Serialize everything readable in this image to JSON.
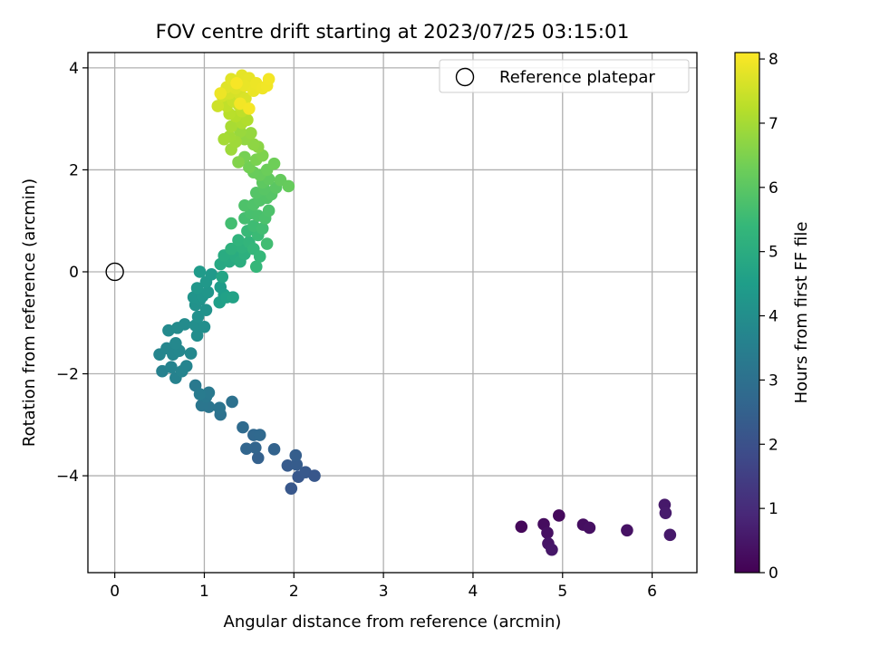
{
  "chart_data": {
    "type": "scatter",
    "title": "FOV centre drift starting at 2023/07/25 03:15:01",
    "xlabel": "Angular distance from reference (arcmin)",
    "ylabel": "Rotation from reference (arcmin)",
    "xlim": [
      -0.3,
      6.5
    ],
    "ylim": [
      -5.9,
      4.3
    ],
    "xticks": [
      0,
      1,
      2,
      3,
      4,
      5,
      6
    ],
    "yticks": [
      -4,
      -2,
      0,
      2,
      4
    ],
    "grid": true,
    "legend": {
      "position": "top-right",
      "label": "Reference platepar",
      "marker": "open-circle"
    },
    "reference_point": {
      "x": 0,
      "y": 0
    },
    "colorbar": {
      "label": "Hours from first FF file",
      "colormap": "viridis",
      "range": [
        0,
        8.1
      ],
      "ticks": [
        0,
        1,
        2,
        3,
        4,
        5,
        6,
        7,
        8
      ]
    },
    "colors": {
      "viridis_stops": [
        "#440154",
        "#482878",
        "#3e4a89",
        "#31688e",
        "#26828e",
        "#1f9e89",
        "#35b779",
        "#6ece58",
        "#b5de2b",
        "#fde725"
      ],
      "grid": "#b0b0b0",
      "axes": "#000000"
    },
    "points": [
      {
        "x": 4.54,
        "y": -5.0,
        "t": 0.15
      },
      {
        "x": 4.79,
        "y": -4.95,
        "t": 0.25
      },
      {
        "x": 4.83,
        "y": -5.12,
        "t": 0.35
      },
      {
        "x": 4.84,
        "y": -5.33,
        "t": 0.45
      },
      {
        "x": 4.88,
        "y": -5.45,
        "t": 0.5
      },
      {
        "x": 4.96,
        "y": -4.78,
        "t": 0.2
      },
      {
        "x": 5.23,
        "y": -4.96,
        "t": 0.3
      },
      {
        "x": 5.3,
        "y": -5.02,
        "t": 0.35
      },
      {
        "x": 5.72,
        "y": -5.07,
        "t": 0.4
      },
      {
        "x": 6.14,
        "y": -4.57,
        "t": 0.55
      },
      {
        "x": 6.15,
        "y": -4.73,
        "t": 0.6
      },
      {
        "x": 6.2,
        "y": -5.16,
        "t": 0.55
      },
      {
        "x": 1.97,
        "y": -4.25,
        "t": 2.2
      },
      {
        "x": 2.05,
        "y": -4.02,
        "t": 2.2
      },
      {
        "x": 2.13,
        "y": -3.93,
        "t": 2.25
      },
      {
        "x": 2.23,
        "y": -4.0,
        "t": 2.2
      },
      {
        "x": 1.93,
        "y": -3.8,
        "t": 2.3
      },
      {
        "x": 2.03,
        "y": -3.78,
        "t": 2.35
      },
      {
        "x": 2.02,
        "y": -3.6,
        "t": 2.4
      },
      {
        "x": 1.6,
        "y": -3.65,
        "t": 2.5
      },
      {
        "x": 1.57,
        "y": -3.45,
        "t": 2.6
      },
      {
        "x": 1.47,
        "y": -3.47,
        "t": 2.65
      },
      {
        "x": 1.78,
        "y": -3.48,
        "t": 2.55
      },
      {
        "x": 1.55,
        "y": -3.2,
        "t": 2.7
      },
      {
        "x": 1.62,
        "y": -3.2,
        "t": 2.75
      },
      {
        "x": 1.43,
        "y": -3.05,
        "t": 2.8
      },
      {
        "x": 1.31,
        "y": -2.55,
        "t": 3.0
      },
      {
        "x": 1.18,
        "y": -2.8,
        "t": 3.05
      },
      {
        "x": 1.17,
        "y": -2.67,
        "t": 3.1
      },
      {
        "x": 1.05,
        "y": -2.65,
        "t": 3.15
      },
      {
        "x": 0.97,
        "y": -2.62,
        "t": 3.2
      },
      {
        "x": 1.02,
        "y": -2.45,
        "t": 3.25
      },
      {
        "x": 1.05,
        "y": -2.37,
        "t": 3.3
      },
      {
        "x": 0.9,
        "y": -2.23,
        "t": 3.3
      },
      {
        "x": 0.95,
        "y": -2.4,
        "t": 3.35
      },
      {
        "x": 0.53,
        "y": -1.95,
        "t": 3.55
      },
      {
        "x": 0.68,
        "y": -2.08,
        "t": 3.6
      },
      {
        "x": 0.63,
        "y": -1.87,
        "t": 3.62
      },
      {
        "x": 0.75,
        "y": -1.95,
        "t": 3.65
      },
      {
        "x": 0.8,
        "y": -1.85,
        "t": 3.68
      },
      {
        "x": 0.5,
        "y": -1.62,
        "t": 3.7
      },
      {
        "x": 0.58,
        "y": -1.5,
        "t": 3.72
      },
      {
        "x": 0.65,
        "y": -1.62,
        "t": 3.74
      },
      {
        "x": 0.72,
        "y": -1.55,
        "t": 3.75
      },
      {
        "x": 0.68,
        "y": -1.4,
        "t": 3.78
      },
      {
        "x": 0.85,
        "y": -1.6,
        "t": 3.8
      },
      {
        "x": 0.6,
        "y": -1.15,
        "t": 3.85
      },
      {
        "x": 0.7,
        "y": -1.1,
        "t": 3.88
      },
      {
        "x": 0.78,
        "y": -1.03,
        "t": 3.9
      },
      {
        "x": 0.92,
        "y": -1.25,
        "t": 3.95
      },
      {
        "x": 0.9,
        "y": -1.05,
        "t": 3.97
      },
      {
        "x": 1.0,
        "y": -1.08,
        "t": 4.0
      },
      {
        "x": 0.93,
        "y": -0.88,
        "t": 4.05
      },
      {
        "x": 1.02,
        "y": -0.75,
        "t": 4.1
      },
      {
        "x": 0.9,
        "y": -0.65,
        "t": 4.12
      },
      {
        "x": 0.95,
        "y": -0.55,
        "t": 4.15
      },
      {
        "x": 0.88,
        "y": -0.5,
        "t": 4.18
      },
      {
        "x": 0.98,
        "y": -0.48,
        "t": 4.2
      },
      {
        "x": 1.04,
        "y": -0.4,
        "t": 4.25
      },
      {
        "x": 0.92,
        "y": -0.32,
        "t": 4.28
      },
      {
        "x": 1.02,
        "y": -0.2,
        "t": 4.3
      },
      {
        "x": 1.08,
        "y": -0.05,
        "t": 4.35
      },
      {
        "x": 0.95,
        "y": 0.0,
        "t": 4.4
      },
      {
        "x": 1.18,
        "y": -0.3,
        "t": 4.45
      },
      {
        "x": 1.22,
        "y": -0.45,
        "t": 4.5
      },
      {
        "x": 1.17,
        "y": -0.6,
        "t": 4.55
      },
      {
        "x": 1.25,
        "y": -0.5,
        "t": 4.6
      },
      {
        "x": 1.32,
        "y": -0.5,
        "t": 4.65
      },
      {
        "x": 1.2,
        "y": -0.1,
        "t": 4.7
      },
      {
        "x": 1.18,
        "y": 0.15,
        "t": 4.85
      },
      {
        "x": 1.28,
        "y": 0.2,
        "t": 4.9
      },
      {
        "x": 1.22,
        "y": 0.32,
        "t": 4.95
      },
      {
        "x": 1.35,
        "y": 0.3,
        "t": 5.0
      },
      {
        "x": 1.4,
        "y": 0.2,
        "t": 5.05
      },
      {
        "x": 1.45,
        "y": 0.35,
        "t": 5.1
      },
      {
        "x": 1.3,
        "y": 0.45,
        "t": 5.15
      },
      {
        "x": 1.42,
        "y": 0.48,
        "t": 5.2
      },
      {
        "x": 1.38,
        "y": 0.62,
        "t": 5.25
      },
      {
        "x": 1.5,
        "y": 0.58,
        "t": 5.3
      },
      {
        "x": 1.55,
        "y": 0.45,
        "t": 5.35
      },
      {
        "x": 1.58,
        "y": 0.1,
        "t": 5.38
      },
      {
        "x": 1.62,
        "y": 0.3,
        "t": 5.4
      },
      {
        "x": 1.48,
        "y": 0.8,
        "t": 5.45
      },
      {
        "x": 1.6,
        "y": 0.72,
        "t": 5.5
      },
      {
        "x": 1.55,
        "y": 0.9,
        "t": 5.55
      },
      {
        "x": 1.65,
        "y": 0.85,
        "t": 5.6
      },
      {
        "x": 1.7,
        "y": 0.55,
        "t": 5.6
      },
      {
        "x": 1.3,
        "y": 0.95,
        "t": 5.62
      },
      {
        "x": 1.45,
        "y": 1.05,
        "t": 5.65
      },
      {
        "x": 1.52,
        "y": 1.15,
        "t": 5.7
      },
      {
        "x": 1.6,
        "y": 1.1,
        "t": 5.72
      },
      {
        "x": 1.68,
        "y": 1.05,
        "t": 5.75
      },
      {
        "x": 1.72,
        "y": 1.2,
        "t": 5.78
      },
      {
        "x": 1.45,
        "y": 1.3,
        "t": 5.8
      },
      {
        "x": 1.55,
        "y": 1.32,
        "t": 5.82
      },
      {
        "x": 1.62,
        "y": 1.4,
        "t": 5.85
      },
      {
        "x": 1.7,
        "y": 1.45,
        "t": 5.88
      },
      {
        "x": 1.58,
        "y": 1.55,
        "t": 5.9
      },
      {
        "x": 1.75,
        "y": 1.52,
        "t": 5.92
      },
      {
        "x": 1.67,
        "y": 1.62,
        "t": 5.95
      },
      {
        "x": 1.8,
        "y": 1.65,
        "t": 6.0
      },
      {
        "x": 1.65,
        "y": 1.75,
        "t": 6.05
      },
      {
        "x": 1.72,
        "y": 1.82,
        "t": 6.1
      },
      {
        "x": 1.85,
        "y": 1.8,
        "t": 6.15
      },
      {
        "x": 1.94,
        "y": 1.68,
        "t": 6.18
      },
      {
        "x": 1.62,
        "y": 1.9,
        "t": 6.2
      },
      {
        "x": 1.55,
        "y": 1.95,
        "t": 6.22
      },
      {
        "x": 1.7,
        "y": 2.0,
        "t": 6.25
      },
      {
        "x": 1.78,
        "y": 2.12,
        "t": 6.3
      },
      {
        "x": 1.5,
        "y": 2.05,
        "t": 6.35
      },
      {
        "x": 1.45,
        "y": 2.25,
        "t": 6.4
      },
      {
        "x": 1.58,
        "y": 2.2,
        "t": 6.45
      },
      {
        "x": 1.65,
        "y": 2.28,
        "t": 6.5
      },
      {
        "x": 1.38,
        "y": 2.15,
        "t": 6.55
      },
      {
        "x": 1.6,
        "y": 2.45,
        "t": 6.65
      },
      {
        "x": 1.55,
        "y": 2.5,
        "t": 6.7
      },
      {
        "x": 1.45,
        "y": 2.6,
        "t": 6.75
      },
      {
        "x": 1.52,
        "y": 2.72,
        "t": 6.8
      },
      {
        "x": 1.4,
        "y": 2.75,
        "t": 6.85
      },
      {
        "x": 1.3,
        "y": 2.4,
        "t": 6.9
      },
      {
        "x": 1.35,
        "y": 2.55,
        "t": 6.92
      },
      {
        "x": 1.28,
        "y": 2.65,
        "t": 6.95
      },
      {
        "x": 1.22,
        "y": 2.6,
        "t": 7.0
      },
      {
        "x": 1.3,
        "y": 2.85,
        "t": 7.05
      },
      {
        "x": 1.42,
        "y": 2.92,
        "t": 7.1
      },
      {
        "x": 1.48,
        "y": 2.98,
        "t": 7.15
      },
      {
        "x": 1.35,
        "y": 3.05,
        "t": 7.2
      },
      {
        "x": 1.28,
        "y": 3.1,
        "t": 7.25
      },
      {
        "x": 1.42,
        "y": 3.15,
        "t": 7.3
      },
      {
        "x": 1.25,
        "y": 3.25,
        "t": 7.35
      },
      {
        "x": 1.38,
        "y": 3.28,
        "t": 7.4
      },
      {
        "x": 1.32,
        "y": 3.35,
        "t": 7.45
      },
      {
        "x": 1.15,
        "y": 3.25,
        "t": 7.5
      },
      {
        "x": 1.2,
        "y": 3.45,
        "t": 7.55
      },
      {
        "x": 1.28,
        "y": 3.5,
        "t": 7.6
      },
      {
        "x": 1.4,
        "y": 3.48,
        "t": 7.62
      },
      {
        "x": 1.46,
        "y": 3.4,
        "t": 7.65
      },
      {
        "x": 1.35,
        "y": 3.6,
        "t": 7.7
      },
      {
        "x": 1.25,
        "y": 3.62,
        "t": 7.72
      },
      {
        "x": 1.3,
        "y": 3.78,
        "t": 7.75
      },
      {
        "x": 1.42,
        "y": 3.85,
        "t": 7.8
      },
      {
        "x": 1.5,
        "y": 3.8,
        "t": 7.82
      },
      {
        "x": 1.45,
        "y": 3.65,
        "t": 7.85
      },
      {
        "x": 1.55,
        "y": 3.55,
        "t": 7.88
      },
      {
        "x": 1.58,
        "y": 3.7,
        "t": 7.9
      },
      {
        "x": 1.65,
        "y": 3.6,
        "t": 7.92
      },
      {
        "x": 1.7,
        "y": 3.65,
        "t": 7.95
      },
      {
        "x": 1.72,
        "y": 3.78,
        "t": 7.97
      },
      {
        "x": 1.4,
        "y": 3.3,
        "t": 7.98
      },
      {
        "x": 1.5,
        "y": 3.2,
        "t": 8.0
      },
      {
        "x": 1.18,
        "y": 3.5,
        "t": 7.9
      },
      {
        "x": 1.36,
        "y": 3.7,
        "t": 8.02
      }
    ]
  }
}
